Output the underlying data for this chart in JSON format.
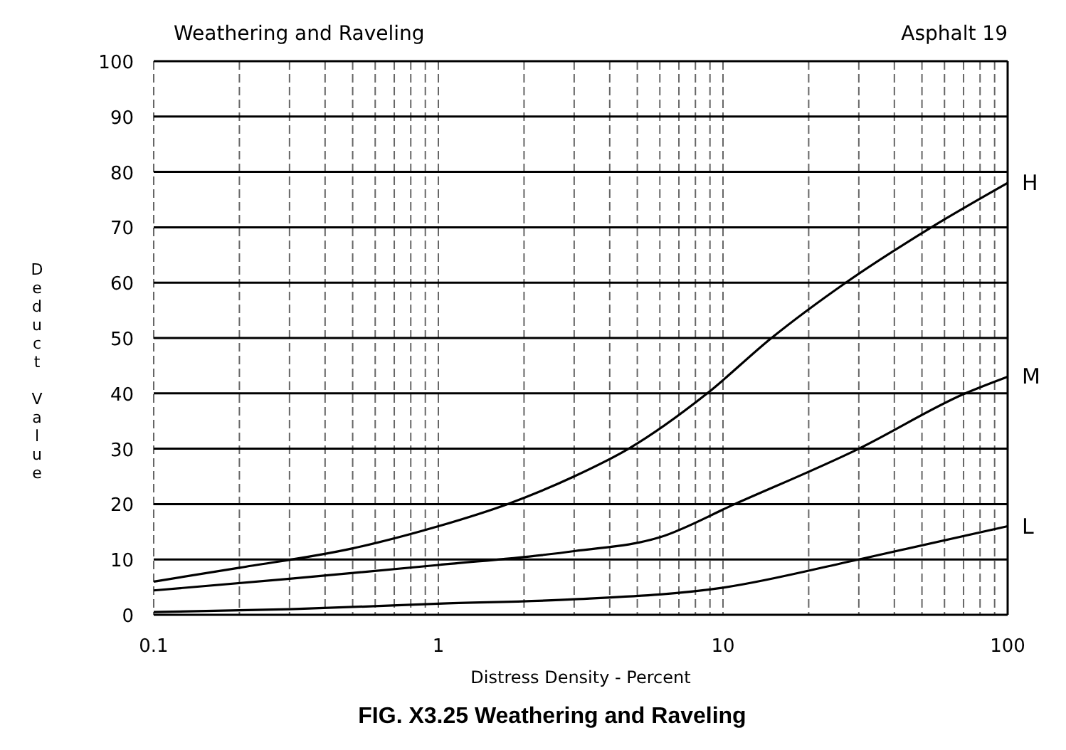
{
  "chart_data": {
    "type": "line",
    "title": "Weathering and Raveling",
    "subtitle": "Asphalt 19",
    "xlabel": "Distress Density - Percent",
    "ylabel": "Deduct Value",
    "annotations": [
      "FIG. X3.25 Weathering and Raveling"
    ],
    "log": "x",
    "grid": true,
    "legend": false,
    "marker": "none",
    "line_style": "solid",
    "xlim": [
      0.1,
      100
    ],
    "xticks": [
      0.1,
      {
        "value": 0.2,
        "label": null
      },
      {
        "value": 0.3,
        "label": null
      },
      {
        "value": 0.4,
        "label": null
      },
      {
        "value": 0.5,
        "label": null
      },
      {
        "value": 0.6,
        "label": null
      },
      {
        "value": 0.7,
        "label": null
      },
      {
        "value": 0.8,
        "label": null
      },
      {
        "value": 0.9,
        "label": null
      },
      1,
      {
        "value": 2,
        "label": null
      },
      {
        "value": 3,
        "label": null
      },
      {
        "value": 4,
        "label": null
      },
      {
        "value": 5,
        "label": null
      },
      {
        "value": 6,
        "label": null
      },
      {
        "value": 7,
        "label": null
      },
      {
        "value": 8,
        "label": null
      },
      {
        "value": 9,
        "label": null
      },
      10,
      {
        "value": 20,
        "label": null
      },
      {
        "value": 30,
        "label": null
      },
      {
        "value": 40,
        "label": null
      },
      {
        "value": 50,
        "label": null
      },
      {
        "value": 60,
        "label": null
      },
      {
        "value": 70,
        "label": null
      },
      {
        "value": 80,
        "label": null
      },
      {
        "value": 90,
        "label": null
      },
      100
    ],
    "ylim": [
      0,
      100
    ],
    "yticks": [
      0,
      10,
      20,
      30,
      40,
      50,
      60,
      70,
      80,
      90,
      100
    ],
    "series": [
      {
        "name": "H",
        "color": "#000000",
        "x": [
          0.1,
          0.2,
          0.5,
          1,
          1.75,
          3,
          4.66,
          8.8,
          14.8,
          27,
          54,
          100
        ],
        "values": [
          6,
          8.5,
          12,
          16,
          20,
          25,
          30,
          40,
          50,
          60,
          70,
          78
        ]
      },
      {
        "name": "M",
        "color": "#000000",
        "x": [
          0.1,
          0.3,
          1,
          3,
          6,
          11,
          30,
          71,
          100
        ],
        "values": [
          4.4,
          6.5,
          9,
          11.5,
          14,
          20,
          30,
          40,
          43
        ]
      },
      {
        "name": "L",
        "color": "#000000",
        "x": [
          0.1,
          0.3,
          1,
          3,
          10,
          30,
          100
        ],
        "values": [
          0.5,
          1,
          2,
          2.8,
          4.9,
          10,
          16
        ]
      }
    ]
  }
}
